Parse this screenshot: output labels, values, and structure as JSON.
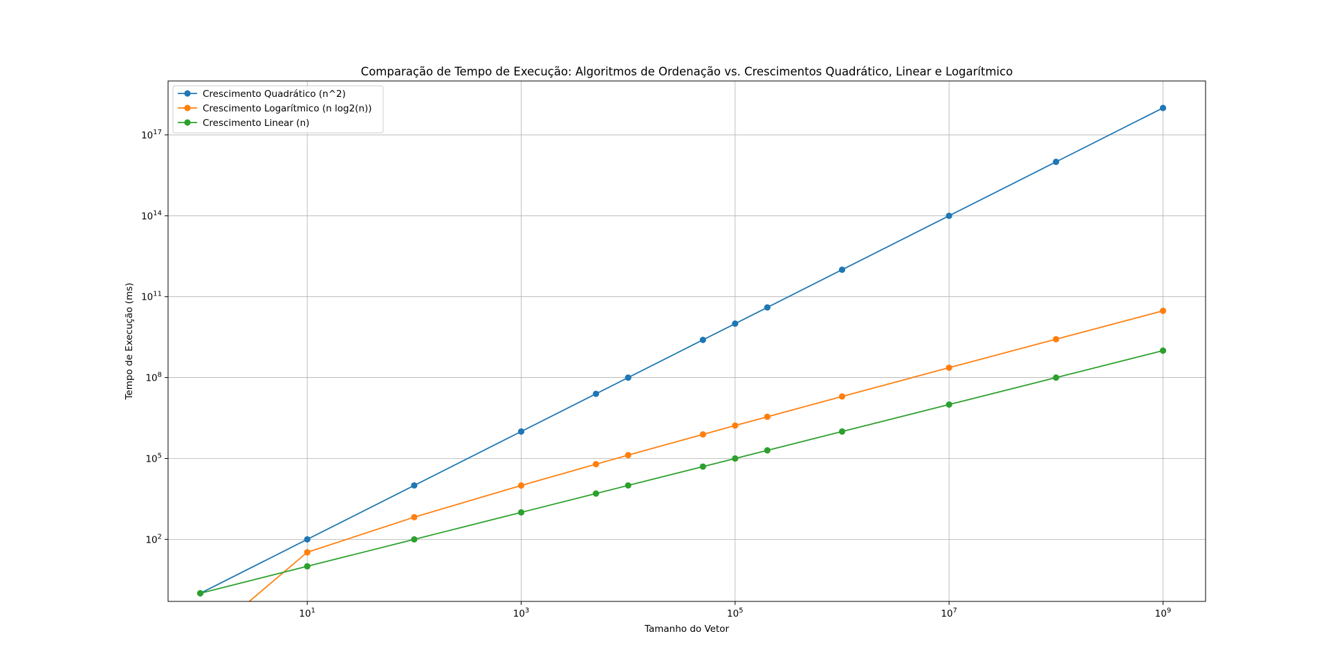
{
  "chart_data": {
    "type": "line",
    "title": "Comparação de Tempo de Execução: Algoritmos de Ordenação vs. Crescimentos Quadrático, Linear e Logarítmico",
    "xlabel": "Tamanho do Vetor",
    "ylabel": "Tempo de Execução (ms)",
    "xscale": "log",
    "yscale": "log",
    "xlim": [
      0.5,
      2500000000
    ],
    "ylim": [
      0.5,
      10000000000000000000
    ],
    "grid": true,
    "legend_position": "upper-left",
    "x": [
      1,
      10,
      100,
      1000,
      5000,
      10000,
      50000,
      100000,
      200000,
      1000000,
      10000000,
      100000000,
      1000000000
    ],
    "xticks": [
      {
        "base": "10",
        "exp": "1",
        "value": 10
      },
      {
        "base": "10",
        "exp": "3",
        "value": 1000
      },
      {
        "base": "10",
        "exp": "5",
        "value": 100000
      },
      {
        "base": "10",
        "exp": "7",
        "value": 10000000
      },
      {
        "base": "10",
        "exp": "9",
        "value": 1000000000
      }
    ],
    "yticks": [
      {
        "base": "10",
        "exp": "2",
        "value": 100
      },
      {
        "base": "10",
        "exp": "5",
        "value": 100000
      },
      {
        "base": "10",
        "exp": "8",
        "value": 100000000
      },
      {
        "base": "10",
        "exp": "11",
        "value": 100000000000
      },
      {
        "base": "10",
        "exp": "14",
        "value": 100000000000000
      },
      {
        "base": "10",
        "exp": "17",
        "value": 100000000000000000
      }
    ],
    "series": [
      {
        "name": "Crescimento Quadrático (n^2)",
        "color": "#1f77b4",
        "values": [
          1,
          100,
          10000,
          1000000,
          25000000,
          100000000,
          2500000000,
          10000000000,
          40000000000,
          1000000000000,
          100000000000000,
          10000000000000000,
          1000000000000000000
        ]
      },
      {
        "name": "Crescimento Logarítmico (n log2(n))",
        "color": "#ff7f0e",
        "values": [
          0,
          33.22,
          664.4,
          9966,
          61439,
          132877,
          780482,
          1660964,
          3521928,
          19931569,
          232534967,
          2657542476,
          29897352854
        ]
      },
      {
        "name": "Crescimento Linear (n)",
        "color": "#2ca02c",
        "values": [
          1,
          10,
          100,
          1000,
          5000,
          10000,
          50000,
          100000,
          200000,
          1000000,
          10000000,
          100000000,
          1000000000
        ]
      }
    ]
  }
}
